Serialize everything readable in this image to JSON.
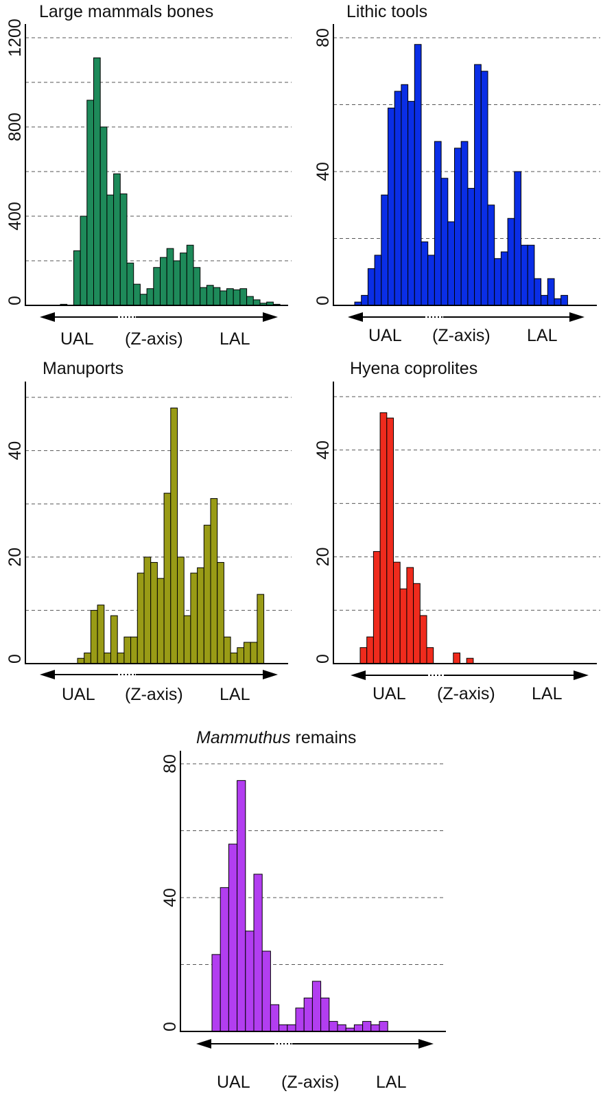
{
  "chart_data": [
    {
      "type": "bar",
      "title": "Large mammals bones",
      "color": "#1e8a5a",
      "yticks": [
        0,
        400,
        800,
        1200
      ],
      "ygrid": [
        200,
        400,
        600,
        800,
        1000,
        1200
      ],
      "ylim": [
        0,
        1200
      ],
      "xlabels": [
        "UAL",
        "(Z-axis)",
        "LAL"
      ],
      "values": [
        5,
        0,
        245,
        400,
        920,
        1110,
        800,
        495,
        590,
        500,
        190,
        95,
        50,
        75,
        170,
        215,
        255,
        200,
        235,
        270,
        170,
        80,
        90,
        80,
        65,
        75,
        70,
        75,
        40,
        25,
        10,
        15,
        5
      ]
    },
    {
      "type": "bar",
      "title": "Lithic tools",
      "color": "#0a2ee6",
      "yticks": [
        0,
        40,
        80
      ],
      "ygrid": [
        20,
        40,
        60,
        80
      ],
      "ylim": [
        0,
        80
      ],
      "xlabels": [
        "UAL",
        "(Z-axis)",
        "LAL"
      ],
      "values": [
        1,
        3,
        11,
        15,
        33,
        59,
        64,
        66,
        61,
        78,
        19,
        15,
        49,
        38,
        25,
        47,
        49,
        35,
        72,
        70,
        30,
        14,
        16,
        26,
        40,
        18,
        18,
        8,
        3,
        8,
        2,
        3
      ]
    },
    {
      "type": "bar",
      "title": "Manuports",
      "color": "#999b16",
      "yticks": [
        0,
        20,
        40
      ],
      "ygrid": [
        10,
        20,
        30,
        40,
        50
      ],
      "ylim": [
        0,
        50
      ],
      "xlabels": [
        "UAL",
        "(Z-axis)",
        "LAL"
      ],
      "values": [
        1,
        2,
        10,
        11,
        2,
        9,
        2,
        5,
        5,
        17,
        20,
        19,
        16,
        32,
        48,
        20,
        9,
        17,
        18,
        26,
        31,
        19,
        5,
        2,
        3,
        4,
        4,
        13
      ]
    },
    {
      "type": "bar",
      "title": "Hyena coprolites",
      "color": "#ef2b1d",
      "yticks": [
        0,
        20,
        40
      ],
      "ygrid": [
        10,
        20,
        30,
        40,
        50
      ],
      "ylim": [
        0,
        50
      ],
      "xlabels": [
        "UAL",
        "(Z-axis)",
        "LAL"
      ],
      "values": [
        3,
        5,
        21,
        47,
        46,
        19,
        14,
        18,
        15,
        9,
        3,
        0,
        0,
        0,
        2,
        0,
        1,
        0,
        0,
        0,
        0,
        0,
        0,
        0,
        0,
        0,
        0,
        0,
        0,
        0,
        0,
        0,
        0,
        0
      ]
    },
    {
      "type": "bar",
      "title_italic": "Mammuthus",
      "title_rest": " remains",
      "color": "#b23ef0",
      "yticks": [
        0,
        40,
        80
      ],
      "ygrid": [
        20,
        40,
        60,
        80
      ],
      "ylim": [
        0,
        80
      ],
      "xlabels": [
        "UAL",
        "(Z-axis)",
        "LAL"
      ],
      "values": [
        23,
        43,
        56,
        75,
        30,
        47,
        24,
        8,
        2,
        2,
        7,
        10,
        15,
        10,
        3,
        2,
        1,
        2,
        3,
        2,
        3
      ]
    }
  ]
}
